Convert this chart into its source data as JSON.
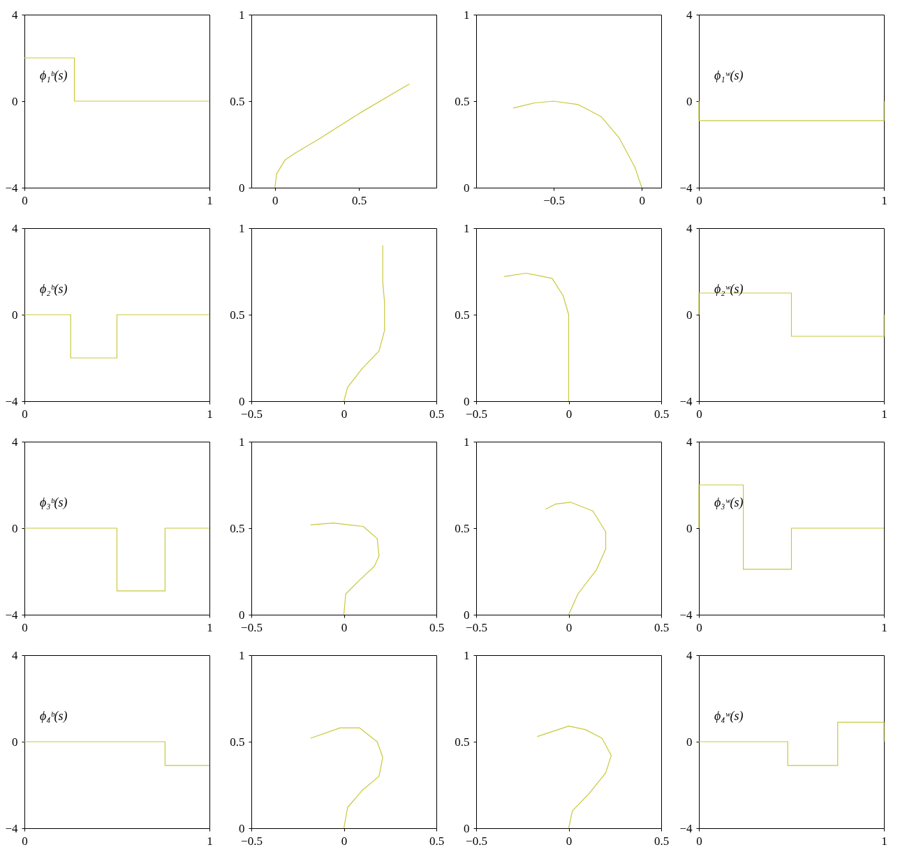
{
  "chart_data": [
    {
      "type": "step",
      "x": [
        0,
        0.27,
        1
      ],
      "series": [
        {
          "color": "#c8c83c",
          "values": [
            2,
            0,
            0
          ]
        }
      ],
      "xlim": [
        0,
        1
      ],
      "xticks": [
        0,
        1
      ],
      "ylim": [
        -4,
        4
      ],
      "yticks": [
        -4,
        0,
        4
      ],
      "annotations": [
        "ϕ₁ᵇ(s)"
      ]
    },
    {
      "type": "line",
      "x": [
        0,
        0.01,
        0.06,
        0.12,
        0.26,
        0.52,
        0.8
      ],
      "series": [
        {
          "color": "#c8c83c",
          "values": [
            0,
            0.08,
            0.16,
            0.2,
            0.28,
            0.44,
            0.6
          ]
        }
      ],
      "xlim": [
        -0.14,
        0.96
      ],
      "xticks": [
        0,
        0.5
      ],
      "ylim": [
        0,
        1
      ],
      "yticks": [
        0,
        0.5,
        1
      ]
    },
    {
      "type": "line",
      "x": [
        -0.73,
        -0.61,
        -0.5,
        -0.36,
        -0.23,
        -0.13,
        -0.04,
        0
      ],
      "series": [
        {
          "color": "#c8c83c",
          "values": [
            0.46,
            0.49,
            0.5,
            0.48,
            0.41,
            0.29,
            0.12,
            0
          ]
        }
      ],
      "xlim": [
        -0.94,
        0.11
      ],
      "xticks": [
        -0.5,
        0
      ],
      "ylim": [
        0,
        1
      ],
      "yticks": [
        0,
        0.5,
        1
      ]
    },
    {
      "type": "step",
      "x": [
        0,
        0,
        1,
        1
      ],
      "series": [
        {
          "color": "#c8c83c",
          "values": [
            0,
            -0.9,
            -0.9,
            0
          ]
        }
      ],
      "xlim": [
        0,
        1
      ],
      "xticks": [
        0,
        1
      ],
      "ylim": [
        -4,
        4
      ],
      "yticks": [
        -4,
        0,
        4
      ],
      "annotations": [
        "ϕ₁ʷ(s)"
      ]
    },
    {
      "type": "step",
      "x": [
        0,
        0.25,
        0.5,
        1
      ],
      "series": [
        {
          "color": "#c8c83c",
          "values": [
            0,
            -2,
            0,
            0
          ]
        }
      ],
      "xlim": [
        0,
        1
      ],
      "xticks": [
        0,
        1
      ],
      "ylim": [
        -4,
        4
      ],
      "yticks": [
        -4,
        0,
        4
      ],
      "annotations": [
        "ϕ₂ᵇ(s)"
      ]
    },
    {
      "type": "line",
      "x": [
        0,
        0.02,
        0.1,
        0.19,
        0.22,
        0.22,
        0.21,
        0.21
      ],
      "series": [
        {
          "color": "#c8c83c",
          "values": [
            0,
            0.08,
            0.19,
            0.29,
            0.41,
            0.57,
            0.69,
            0.9
          ]
        }
      ],
      "xlim": [
        -0.5,
        0.5
      ],
      "xticks": [
        -0.5,
        0,
        0.5
      ],
      "ylim": [
        0,
        1
      ],
      "yticks": [
        0,
        0.5,
        1
      ]
    },
    {
      "type": "line",
      "x": [
        0,
        0,
        -0.03,
        -0.09,
        -0.23,
        -0.35
      ],
      "series": [
        {
          "color": "#c8c83c",
          "values": [
            0,
            0.5,
            0.61,
            0.71,
            0.74,
            0.72
          ]
        }
      ],
      "xlim": [
        -0.5,
        0.5
      ],
      "xticks": [
        -0.5,
        0,
        0.5
      ],
      "ylim": [
        0,
        1
      ],
      "yticks": [
        0,
        0.5,
        1
      ]
    },
    {
      "type": "step",
      "x": [
        0,
        0,
        0.5,
        1,
        1
      ],
      "series": [
        {
          "color": "#c8c83c",
          "values": [
            0,
            1,
            -1,
            -1,
            0
          ]
        }
      ],
      "xlim": [
        0,
        1
      ],
      "xticks": [
        0,
        1
      ],
      "ylim": [
        -4,
        4
      ],
      "yticks": [
        -4,
        0,
        4
      ],
      "annotations": [
        "ϕ₂ʷ(s)"
      ]
    },
    {
      "type": "step",
      "x": [
        0,
        0.5,
        0.76,
        1
      ],
      "series": [
        {
          "color": "#c8c83c",
          "values": [
            0,
            -2.9,
            0,
            0
          ]
        }
      ],
      "xlim": [
        0,
        1
      ],
      "xticks": [
        0,
        1
      ],
      "ylim": [
        -4,
        4
      ],
      "yticks": [
        -4,
        0,
        4
      ],
      "annotations": [
        "ϕ₃ᵇ(s)"
      ]
    },
    {
      "type": "line",
      "x": [
        0,
        0.01,
        0.085,
        0.165,
        0.19,
        0.18,
        0.105,
        -0.056,
        -0.18
      ],
      "series": [
        {
          "color": "#c8c83c",
          "values": [
            0,
            0.12,
            0.2,
            0.28,
            0.34,
            0.44,
            0.51,
            0.53,
            0.52
          ]
        }
      ],
      "xlim": [
        -0.5,
        0.5
      ],
      "xticks": [
        -0.5,
        0,
        0.5
      ],
      "ylim": [
        0,
        1
      ],
      "yticks": [
        0,
        0.5,
        1
      ]
    },
    {
      "type": "line",
      "x": [
        0,
        0.05,
        0.15,
        0.2,
        0.2,
        0.13,
        0.01,
        -0.07,
        -0.125
      ],
      "series": [
        {
          "color": "#c8c83c",
          "values": [
            0,
            0.12,
            0.26,
            0.38,
            0.48,
            0.6,
            0.65,
            0.64,
            0.61
          ]
        }
      ],
      "xlim": [
        -0.5,
        0.5
      ],
      "xticks": [
        -0.5,
        0,
        0.5
      ],
      "ylim": [
        0,
        1
      ],
      "yticks": [
        0,
        0.5,
        1
      ]
    },
    {
      "type": "step",
      "x": [
        0,
        0,
        0.24,
        0.5,
        1
      ],
      "series": [
        {
          "color": "#c8c83c",
          "values": [
            0,
            2,
            -1.9,
            0,
            0
          ]
        }
      ],
      "xlim": [
        0,
        1
      ],
      "xticks": [
        0,
        1
      ],
      "ylim": [
        -4,
        4
      ],
      "yticks": [
        -4,
        0,
        4
      ],
      "annotations": [
        "ϕ₃ʷ(s)"
      ]
    },
    {
      "type": "step",
      "x": [
        0,
        0.76,
        1
      ],
      "series": [
        {
          "color": "#c8c83c",
          "values": [
            0,
            -1.1,
            -1.1
          ]
        }
      ],
      "xlim": [
        0,
        1
      ],
      "xticks": [
        0,
        1
      ],
      "ylim": [
        -4,
        4
      ],
      "yticks": [
        -4,
        0,
        4
      ],
      "annotations": [
        "ϕ₄ᵇ(s)"
      ]
    },
    {
      "type": "line",
      "x": [
        0,
        0.02,
        0.1,
        0.19,
        0.21,
        0.18,
        0.085,
        -0.02,
        -0.18
      ],
      "series": [
        {
          "color": "#c8c83c",
          "values": [
            0,
            0.12,
            0.22,
            0.3,
            0.41,
            0.5,
            0.58,
            0.58,
            0.52
          ]
        }
      ],
      "xlim": [
        -0.5,
        0.5
      ],
      "xticks": [
        -0.5,
        0,
        0.5
      ],
      "ylim": [
        0,
        1
      ],
      "yticks": [
        0,
        0.5,
        1
      ]
    },
    {
      "type": "line",
      "x": [
        0,
        0.02,
        0.11,
        0.2,
        0.23,
        0.18,
        0.09,
        0,
        -0.17
      ],
      "series": [
        {
          "color": "#c8c83c",
          "values": [
            0,
            0.1,
            0.2,
            0.32,
            0.42,
            0.52,
            0.57,
            0.59,
            0.53
          ]
        }
      ],
      "xlim": [
        -0.5,
        0.5
      ],
      "xticks": [
        -0.5,
        0,
        0.5
      ],
      "ylim": [
        0,
        1
      ],
      "yticks": [
        0,
        0.5,
        1
      ]
    },
    {
      "type": "step",
      "x": [
        0,
        0.48,
        0.75,
        1,
        1
      ],
      "series": [
        {
          "color": "#c8c83c",
          "values": [
            0,
            -1.1,
            0.9,
            0.9,
            0
          ]
        }
      ],
      "xlim": [
        0,
        1
      ],
      "xticks": [
        0,
        1
      ],
      "ylim": [
        -4,
        4
      ],
      "yticks": [
        -4,
        0,
        4
      ],
      "annotations": [
        "ϕ₄ʷ(s)"
      ]
    }
  ]
}
